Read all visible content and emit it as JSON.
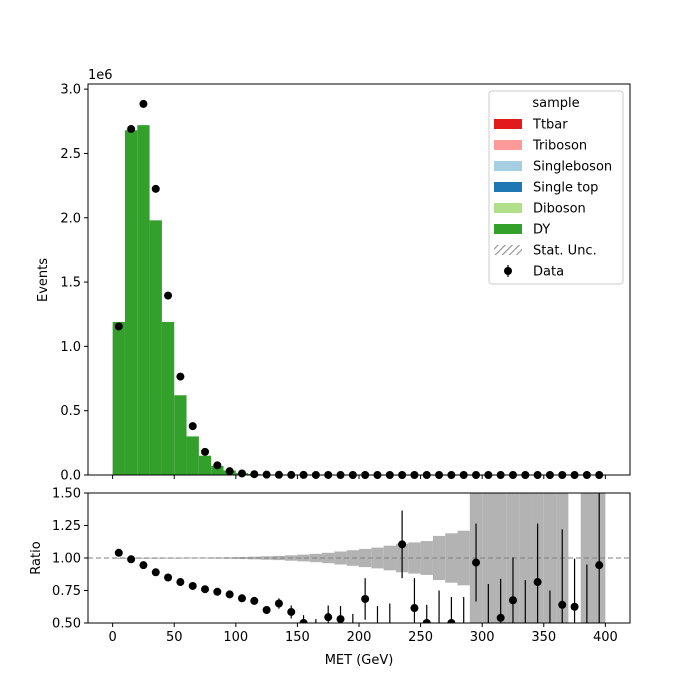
{
  "chart_data": [
    {
      "type": "bar",
      "panel": "main",
      "ylabel": "Events",
      "offset_text": "1e6",
      "xlim": [
        -20,
        420
      ],
      "ylim": [
        0,
        3.04
      ],
      "yticks": [
        0.0,
        0.5,
        1.0,
        1.5,
        2.0,
        2.5,
        3.0
      ],
      "ytick_labels": [
        "0.0",
        "0.5",
        "1.0",
        "1.5",
        "2.0",
        "2.5",
        "3.0"
      ],
      "bin_edges": [
        0,
        10,
        20,
        30,
        40,
        50,
        60,
        70,
        80,
        90,
        100,
        110,
        120,
        130,
        140,
        150,
        160,
        170,
        180,
        190,
        200,
        210,
        220,
        230,
        240,
        250,
        260,
        270,
        280,
        290,
        300,
        310,
        320,
        330,
        340,
        350,
        360,
        370,
        380,
        390,
        400
      ],
      "stack_values": [
        1.19,
        2.68,
        2.72,
        1.98,
        1.19,
        0.62,
        0.3,
        0.15,
        0.07,
        0.035,
        0.015,
        0.008,
        0.004,
        0.002,
        0.0012,
        0.0008,
        0.0005,
        0.0003,
        0.0002,
        0.0001,
        0.0001,
        6e-05,
        5e-05,
        4e-05,
        3e-05,
        2e-05,
        2e-05,
        1e-05,
        1e-05,
        1e-05,
        1e-05,
        0,
        0,
        0,
        0,
        0,
        0,
        0,
        0,
        0
      ],
      "legend_title": "sample",
      "legend_position": "upper right",
      "series": [
        {
          "name": "Ttbar",
          "color": "#e31a1c",
          "kind": "patch"
        },
        {
          "name": "Triboson",
          "color": "#fb9a99",
          "kind": "patch"
        },
        {
          "name": "Singleboson",
          "color": "#a6cee3",
          "kind": "patch"
        },
        {
          "name": "Single top",
          "color": "#1f78b4",
          "kind": "patch"
        },
        {
          "name": "Diboson",
          "color": "#b2df8a",
          "kind": "patch"
        },
        {
          "name": "DY",
          "color": "#33a02c",
          "kind": "patch"
        },
        {
          "name": "Stat. Unc.",
          "color": "#888888",
          "kind": "hatch"
        },
        {
          "name": "Data",
          "color": "#000000",
          "kind": "errorbar"
        }
      ],
      "data_x": [
        5,
        15,
        25,
        35,
        45,
        55,
        65,
        75,
        85,
        95,
        105,
        115,
        125,
        135,
        145,
        155,
        165,
        175,
        185,
        195,
        205,
        215,
        225,
        235,
        245,
        255,
        265,
        275,
        285,
        295,
        305,
        315,
        325,
        335,
        345,
        355,
        365,
        375,
        385,
        395
      ],
      "data_y": [
        1.155,
        2.69,
        2.885,
        2.225,
        1.395,
        0.765,
        0.38,
        0.18,
        0.075,
        0.03,
        0.012,
        0.006,
        0.003,
        0.0015,
        0.0008,
        0.0005,
        0.0003,
        0.0002,
        0.0001,
        0.0001,
        0.0001,
        5e-05,
        4e-05,
        4e-05,
        2e-05,
        1e-05,
        1e-05,
        1e-05,
        1e-05,
        1e-05,
        1e-05,
        1e-05,
        1e-05,
        1e-05,
        1e-05,
        1e-05,
        1e-05,
        1e-05,
        1e-05,
        1e-05
      ]
    },
    {
      "type": "scatter",
      "panel": "ratio",
      "ylabel": "Ratio",
      "xlabel": "MET (GeV)",
      "xlim": [
        -20,
        420
      ],
      "ylim": [
        0.5,
        1.5
      ],
      "xticks": [
        0,
        50,
        100,
        150,
        200,
        250,
        300,
        350,
        400
      ],
      "xtick_labels": [
        "0",
        "50",
        "100",
        "150",
        "200",
        "250",
        "300",
        "350",
        "400"
      ],
      "yticks": [
        0.5,
        0.75,
        1.0,
        1.25,
        1.5
      ],
      "ytick_labels": [
        "0.50",
        "0.75",
        "1.00",
        "1.25",
        "1.50"
      ],
      "reference_line": 1.0,
      "bin_edges": [
        0,
        10,
        20,
        30,
        40,
        50,
        60,
        70,
        80,
        90,
        100,
        110,
        120,
        130,
        140,
        150,
        160,
        170,
        180,
        190,
        200,
        210,
        220,
        230,
        240,
        250,
        260,
        270,
        280,
        290,
        300,
        310,
        320,
        330,
        340,
        350,
        360,
        370,
        380,
        390,
        400
      ],
      "unc_band": [
        0.002,
        0.002,
        0.002,
        0.002,
        0.003,
        0.003,
        0.004,
        0.004,
        0.005,
        0.006,
        0.008,
        0.01,
        0.013,
        0.016,
        0.021,
        0.026,
        0.032,
        0.04,
        0.05,
        0.06,
        0.07,
        0.08,
        0.095,
        0.11,
        0.12,
        0.13,
        0.17,
        0.19,
        0.21,
        0.5,
        0.5,
        0.5,
        0.5,
        0.5,
        0.5,
        0.5,
        0.5,
        0,
        0.5,
        0.5
      ],
      "ratio_x": [
        5,
        15,
        25,
        35,
        45,
        55,
        65,
        75,
        85,
        95,
        105,
        115,
        125,
        135,
        145,
        155,
        165,
        175,
        185,
        195,
        205,
        215,
        225,
        235,
        245,
        255,
        265,
        275,
        285,
        295,
        305,
        315,
        325,
        335,
        345,
        355,
        365,
        375,
        385,
        395
      ],
      "ratio_y": [
        1.04,
        0.99,
        0.945,
        0.89,
        0.85,
        0.815,
        0.785,
        0.76,
        0.74,
        0.72,
        0.69,
        0.67,
        0.6,
        0.65,
        0.585,
        0.5,
        0.45,
        0.545,
        0.53,
        0.45,
        0.685,
        0.45,
        0.45,
        1.105,
        0.615,
        0.5,
        0.45,
        0.5,
        0.45,
        0.965,
        0.45,
        0.54,
        0.675,
        0.45,
        0.815,
        0.45,
        0.64,
        0.625,
        0.45,
        0.945
      ],
      "ratio_err": [
        0.002,
        0.002,
        0.002,
        0.002,
        0.002,
        0.003,
        0.004,
        0.005,
        0.007,
        0.01,
        0.015,
        0.02,
        0.03,
        0.04,
        0.05,
        0.06,
        0.08,
        0.09,
        0.1,
        0.12,
        0.16,
        0.18,
        0.2,
        0.26,
        0.23,
        0.14,
        0.3,
        0.2,
        0.25,
        0.3,
        0.35,
        0.3,
        0.33,
        0.38,
        0.45,
        0.3,
        0.58,
        0.37,
        0.5,
        0.6
      ]
    }
  ]
}
